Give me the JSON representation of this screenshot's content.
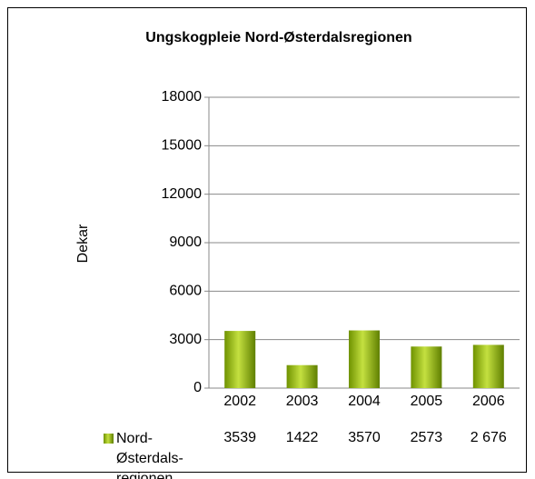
{
  "chart_data": {
    "type": "bar",
    "title": "Ungskogpleie Nord-Østerdalsregionen",
    "y_label": "Dekar",
    "categories": [
      "2002",
      "2003",
      "2004",
      "2005",
      "2006"
    ],
    "series": [
      {
        "name": "Nord-Østerdals-regionen",
        "color": "#8db218",
        "values": [
          3539,
          1422,
          3570,
          2573,
          2676
        ],
        "value_labels": [
          "3539",
          "1422",
          "3570",
          "2573",
          "2 676"
        ]
      }
    ],
    "ylim": [
      0,
      18000
    ],
    "yticks": [
      0,
      3000,
      6000,
      9000,
      12000,
      15000,
      18000
    ],
    "grid": true
  }
}
